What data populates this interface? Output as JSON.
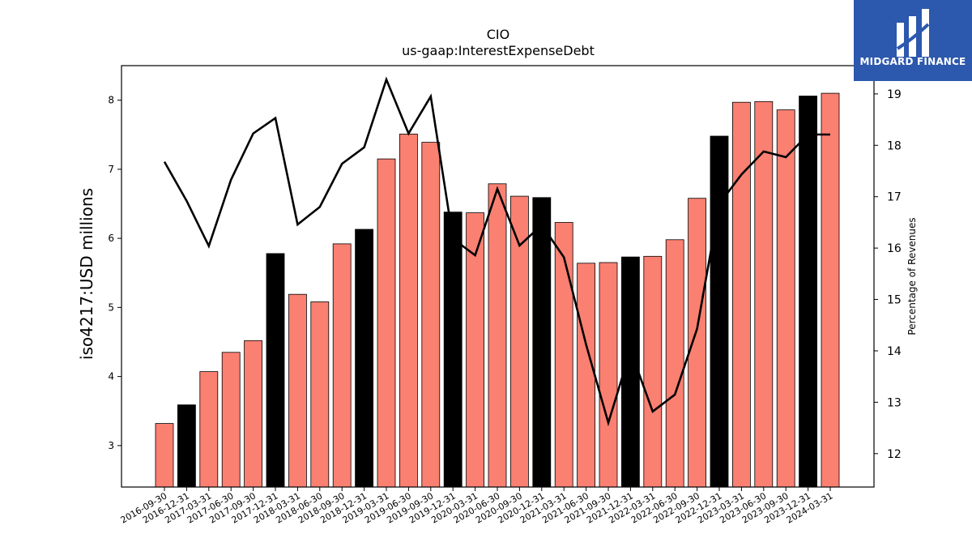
{
  "brand": {
    "name": "MIDGARD FINANCE",
    "bg_color": "#2c58ad"
  },
  "chart_data": {
    "type": "bar",
    "title": "CIO",
    "subtitle": "us-gaap:InterestExpenseDebt",
    "ylabel": "iso4217:USD  millions",
    "y2label": "Percentage of Revenues",
    "ylim": [
      2.4,
      8.5
    ],
    "y2lim": [
      11.35,
      19.55
    ],
    "yticks": [
      3,
      4,
      5,
      6,
      7,
      8
    ],
    "y2ticks": [
      12,
      13,
      14,
      15,
      16,
      17,
      18,
      19
    ],
    "categories": [
      "2016-09-30",
      "2016-12-31",
      "2017-03-31",
      "2017-06-30",
      "2017-09-30",
      "2017-12-31",
      "2018-03-31",
      "2018-06-30",
      "2018-09-30",
      "2018-12-31",
      "2019-03-31",
      "2019-06-30",
      "2019-09-30",
      "2019-12-31",
      "2020-03-31",
      "2020-06-30",
      "2020-09-30",
      "2020-12-31",
      "2021-03-31",
      "2021-06-30",
      "2021-09-30",
      "2021-12-31",
      "2022-03-31",
      "2022-06-30",
      "2022-09-30",
      "2022-12-31",
      "2023-03-31",
      "2023-06-30",
      "2023-09-30",
      "2023-12-31",
      "2024-03-31"
    ],
    "series": [
      {
        "kind": "bar",
        "values": [
          3.32,
          3.59,
          4.07,
          4.35,
          4.52,
          5.78,
          5.19,
          5.08,
          5.92,
          6.13,
          7.15,
          7.51,
          7.39,
          6.38,
          6.37,
          6.79,
          6.61,
          6.59,
          6.23,
          5.64,
          5.65,
          5.73,
          5.74,
          5.98,
          6.58,
          7.48,
          7.97,
          7.98,
          7.86,
          8.06,
          8.1
        ],
        "colors": [
          "#fa8072",
          "#000000",
          "#fa8072",
          "#fa8072",
          "#fa8072",
          "#000000",
          "#fa8072",
          "#fa8072",
          "#fa8072",
          "#000000",
          "#fa8072",
          "#fa8072",
          "#fa8072",
          "#000000",
          "#fa8072",
          "#fa8072",
          "#fa8072",
          "#000000",
          "#fa8072",
          "#fa8072",
          "#fa8072",
          "#000000",
          "#fa8072",
          "#fa8072",
          "#fa8072",
          "#000000",
          "#fa8072",
          "#fa8072",
          "#fa8072",
          "#000000",
          "#fa8072"
        ]
      },
      {
        "kind": "line",
        "axis": "right",
        "values": [
          17.68,
          16.92,
          16.04,
          17.33,
          18.23,
          18.53,
          16.46,
          16.8,
          17.64,
          17.96,
          19.28,
          18.23,
          18.95,
          16.18,
          15.86,
          17.15,
          16.05,
          16.45,
          15.82,
          14.12,
          12.6,
          14.01,
          12.82,
          13.15,
          14.43,
          16.86,
          17.43,
          17.88,
          17.77,
          18.21,
          18.21
        ],
        "color": "#000000"
      }
    ],
    "grid": false,
    "legend": "none"
  }
}
